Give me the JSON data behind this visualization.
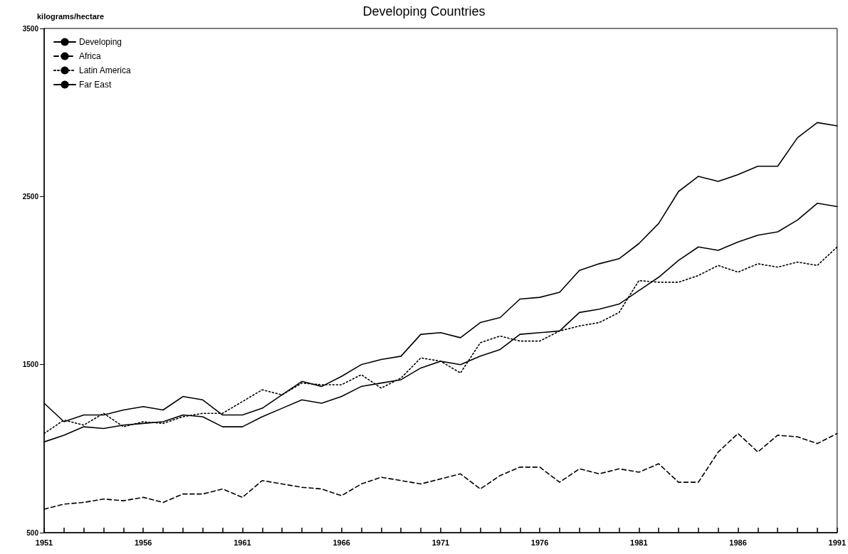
{
  "chart_data": {
    "type": "line",
    "title": "Developing Countries",
    "ylabel": "kilograms/hectare",
    "x": [
      1951,
      1952,
      1953,
      1954,
      1955,
      1956,
      1957,
      1958,
      1959,
      1960,
      1961,
      1962,
      1963,
      1964,
      1965,
      1966,
      1967,
      1968,
      1969,
      1970,
      1971,
      1972,
      1973,
      1974,
      1975,
      1976,
      1977,
      1978,
      1979,
      1980,
      1981,
      1982,
      1983,
      1984,
      1985,
      1986,
      1987,
      1988,
      1989,
      1990,
      1991
    ],
    "series": [
      {
        "name": "Developing",
        "color": "#000000",
        "line_style": "solid",
        "values": [
          1040,
          1080,
          1130,
          1120,
          1140,
          1150,
          1160,
          1200,
          1190,
          1130,
          1130,
          1190,
          1240,
          1290,
          1270,
          1310,
          1370,
          1390,
          1410,
          1480,
          1520,
          1500,
          1550,
          1590,
          1680,
          1690,
          1700,
          1810,
          1830,
          1860,
          1940,
          2020,
          2120,
          2200,
          2180,
          2230,
          2270,
          2290,
          2360,
          2460,
          2440
        ]
      },
      {
        "name": "Africa",
        "color": "#000000",
        "line_style": "dashed",
        "values": [
          640,
          670,
          680,
          700,
          690,
          710,
          680,
          730,
          730,
          760,
          710,
          810,
          790,
          770,
          760,
          720,
          790,
          830,
          810,
          790,
          820,
          850,
          760,
          840,
          890,
          890,
          800,
          880,
          850,
          880,
          860,
          910,
          800,
          800,
          980,
          1090,
          980,
          1080,
          1070,
          1030,
          1090
        ]
      },
      {
        "name": "Latin America",
        "color": "#000000",
        "line_style": "dotted",
        "values": [
          1090,
          1170,
          1140,
          1210,
          1130,
          1160,
          1150,
          1190,
          1210,
          1210,
          1280,
          1350,
          1320,
          1390,
          1380,
          1380,
          1440,
          1360,
          1420,
          1540,
          1520,
          1450,
          1630,
          1670,
          1640,
          1640,
          1700,
          1730,
          1750,
          1810,
          2000,
          1990,
          1990,
          2030,
          2090,
          2050,
          2100,
          2080,
          2110,
          2090,
          2200
        ]
      },
      {
        "name": "Far East",
        "color": "#000000",
        "line_style": "solid",
        "values": [
          1270,
          1160,
          1200,
          1200,
          1230,
          1250,
          1230,
          1310,
          1290,
          1200,
          1200,
          1240,
          1320,
          1400,
          1370,
          1430,
          1500,
          1530,
          1550,
          1680,
          1690,
          1660,
          1750,
          1780,
          1890,
          1900,
          1930,
          2060,
          2100,
          2130,
          2220,
          2340,
          2530,
          2620,
          2590,
          2630,
          2680,
          2680,
          2850,
          2940,
          2920
        ]
      }
    ],
    "xlim": [
      1951,
      1991
    ],
    "xticks": [
      1951,
      {
        "value": 1952,
        "label": null
      },
      {
        "value": 1953,
        "label": null
      },
      {
        "value": 1954,
        "label": null
      },
      {
        "value": 1955,
        "label": null
      },
      1956,
      {
        "value": 1957,
        "label": null
      },
      {
        "value": 1958,
        "label": null
      },
      {
        "value": 1959,
        "label": null
      },
      {
        "value": 1960,
        "label": null
      },
      1961,
      {
        "value": 1962,
        "label": null
      },
      {
        "value": 1963,
        "label": null
      },
      {
        "value": 1964,
        "label": null
      },
      {
        "value": 1965,
        "label": null
      },
      1966,
      {
        "value": 1967,
        "label": null
      },
      {
        "value": 1968,
        "label": null
      },
      {
        "value": 1969,
        "label": null
      },
      {
        "value": 1970,
        "label": null
      },
      1971,
      {
        "value": 1972,
        "label": null
      },
      {
        "value": 1973,
        "label": null
      },
      {
        "value": 1974,
        "label": null
      },
      {
        "value": 1975,
        "label": null
      },
      1976,
      {
        "value": 1977,
        "label": null
      },
      {
        "value": 1978,
        "label": null
      },
      {
        "value": 1979,
        "label": null
      },
      {
        "value": 1980,
        "label": null
      },
      1981,
      {
        "value": 1982,
        "label": null
      },
      {
        "value": 1983,
        "label": null
      },
      {
        "value": 1984,
        "label": null
      },
      {
        "value": 1985,
        "label": null
      },
      1986,
      {
        "value": 1987,
        "label": null
      },
      {
        "value": 1988,
        "label": null
      },
      {
        "value": 1989,
        "label": null
      },
      {
        "value": 1990,
        "label": null
      },
      1991
    ],
    "ylim": [
      500,
      3500
    ],
    "yticks": [
      500,
      1500,
      2500,
      3500
    ],
    "grid": false,
    "legend": "top left",
    "marker": "none"
  }
}
